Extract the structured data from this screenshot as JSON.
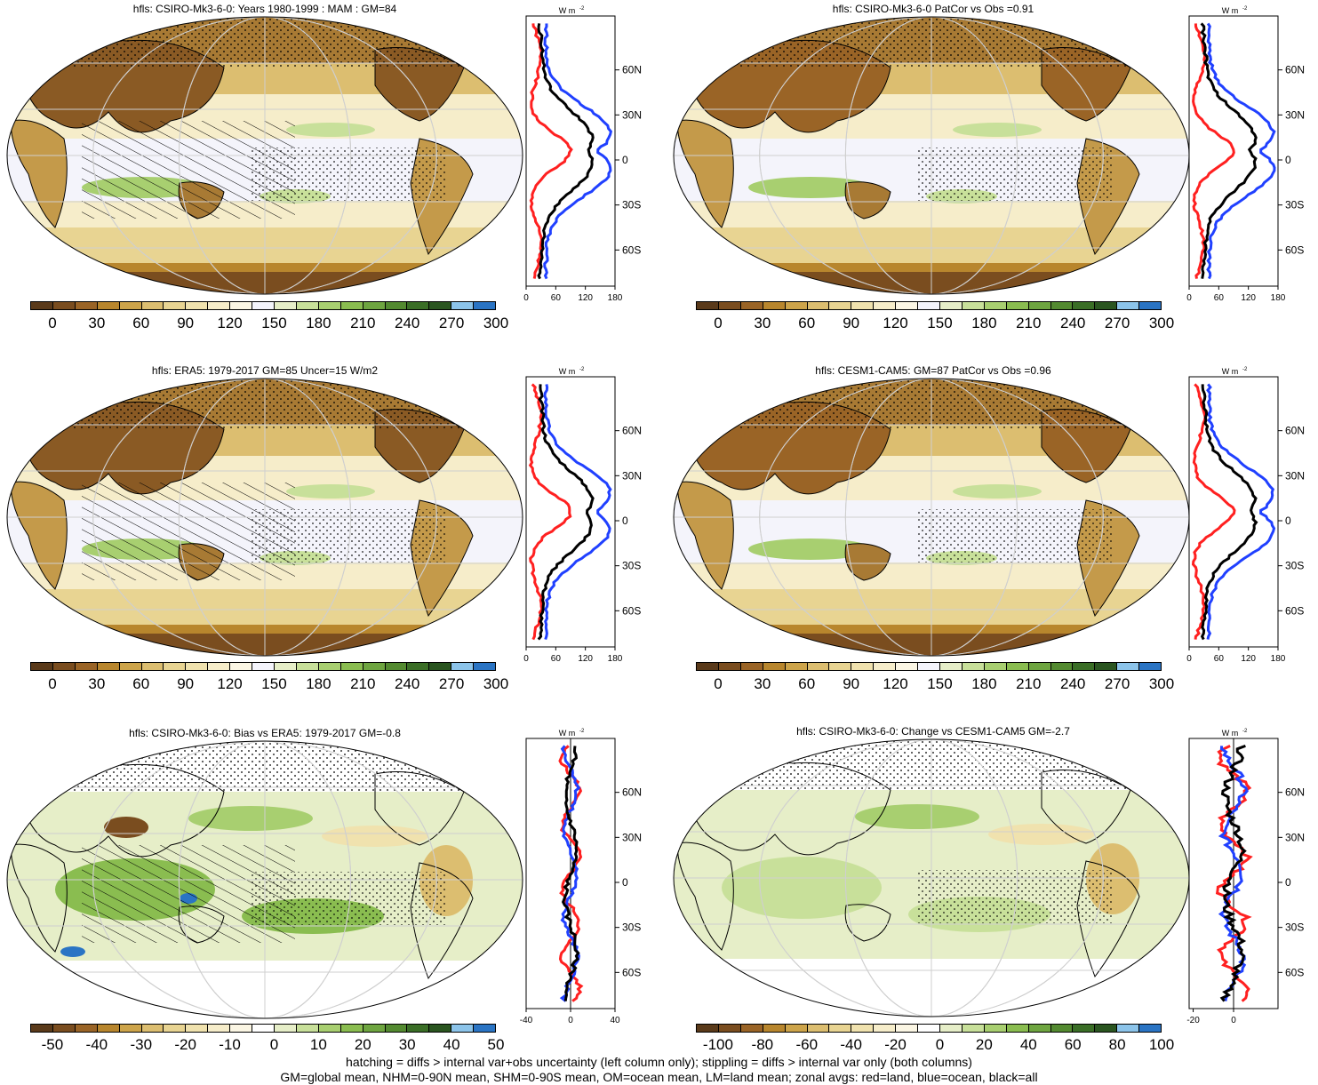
{
  "panels": {
    "p1": {
      "title": "hfls: CSIRO-Mk3-6-0: Years 1980-1999 : MAM : GM=84"
    },
    "p2": {
      "title": "hfls: CSIRO-Mk3-6-0 PatCor vs Obs =0.91"
    },
    "p3": {
      "title": "hfls: ERA5: 1979-2017 GM=85 Uncer=15 W/m2"
    },
    "p4": {
      "title": "hfls: CESM1-CAM5: GM=87 PatCor vs Obs =0.96"
    },
    "p5": {
      "title": "hfls: CSIRO-Mk3-6-0: Bias vs ERA5: 1979-2017 GM=-0.8"
    },
    "p6": {
      "title": "hfls: CSIRO-Mk3-6-0: Change vs CESM1-CAM5 GM=-2.7"
    }
  },
  "colorbars": {
    "abs": {
      "colors": [
        "#5a3a1a",
        "#7a4d1f",
        "#9a6426",
        "#b8862d",
        "#cda44a",
        "#dcbe70",
        "#e8d492",
        "#f0e2ae",
        "#f6edca",
        "#fbf6e4",
        "#f4f4fb",
        "#e6eec8",
        "#c8e09a",
        "#a8cf70",
        "#8abd50",
        "#6ea540",
        "#538a30",
        "#3a6e26",
        "#2a5520",
        "#8cc4ea",
        "#2a74c4"
      ],
      "labels": [
        "0",
        "30",
        "60",
        "90",
        "120",
        "150",
        "180",
        "210",
        "240",
        "270",
        "300"
      ]
    },
    "bias": {
      "colors": [
        "#5a3a1a",
        "#7a4d1f",
        "#9a6426",
        "#b8862d",
        "#cda44a",
        "#dcbe70",
        "#e8d492",
        "#f0e2ae",
        "#f6edca",
        "#fbf6e4",
        "#ffffff",
        "#e6eec8",
        "#c8e09a",
        "#a8cf70",
        "#8abd50",
        "#6ea540",
        "#538a30",
        "#3a6e26",
        "#2a5520",
        "#8cc4ea",
        "#2a74c4"
      ],
      "labels": [
        "-50",
        "-40",
        "-30",
        "-20",
        "-10",
        "0",
        "10",
        "20",
        "30",
        "40",
        "50"
      ]
    },
    "change": {
      "colors": [
        "#5a3a1a",
        "#7a4d1f",
        "#9a6426",
        "#b8862d",
        "#cda44a",
        "#dcbe70",
        "#e8d492",
        "#f0e2ae",
        "#f6edca",
        "#fbf6e4",
        "#ffffff",
        "#e6eec8",
        "#c8e09a",
        "#a8cf70",
        "#8abd50",
        "#6ea540",
        "#538a30",
        "#3a6e26",
        "#2a5520",
        "#8cc4ea",
        "#2a74c4"
      ],
      "labels": [
        "-100",
        "-80",
        "-60",
        "-40",
        "-20",
        "0",
        "20",
        "40",
        "60",
        "80",
        "100"
      ]
    }
  },
  "zonal": {
    "units": "W m",
    "units_exp": "-2",
    "lat_labels": [
      "60N",
      "30N",
      "0",
      "30S",
      "60S"
    ],
    "xticks_abs": [
      "0",
      "60",
      "120",
      "180"
    ],
    "xticks_bias": [
      "-40",
      "0",
      "40"
    ],
    "xticks_change": [
      "-20",
      "0"
    ],
    "line_colors": {
      "land": "#ff2020",
      "ocean": "#2040ff",
      "all": "#000000"
    }
  },
  "map_colors": {
    "ocean_light": "#f6edca",
    "ocean_white": "#f4f4fb",
    "land_dry": "#8a5a24",
    "land_mid": "#c49a4a",
    "tropics_green": "#a8cf70",
    "bias_green": "#8abd50"
  },
  "footer": {
    "line1": "hatching = diffs > internal var+obs uncertainty (left column only); stippling = diffs > internal var only (both columns)",
    "line2": "GM=global mean, NHM=0-90N mean, SHM=0-90S mean, OM=ocean mean, LM=land mean; zonal avgs: red=land, blue=ocean, black=all"
  }
}
